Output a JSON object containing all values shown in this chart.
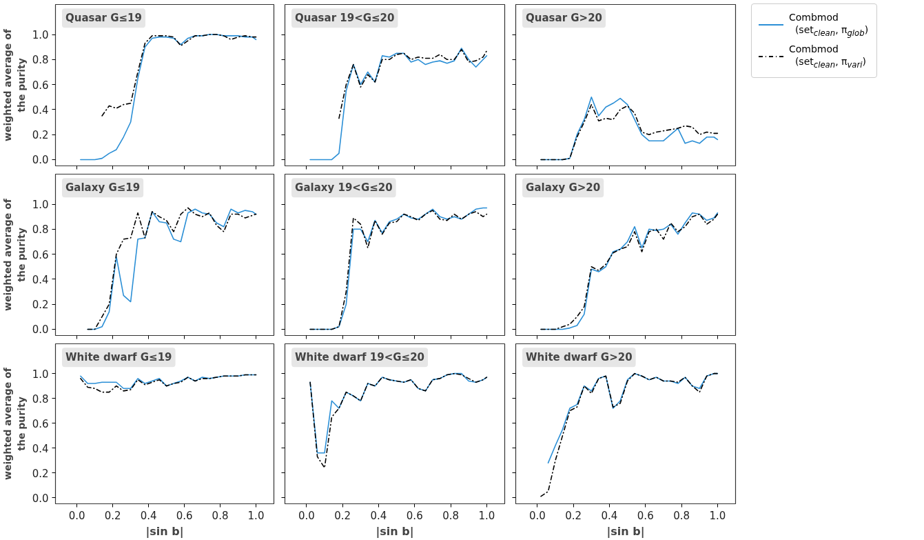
{
  "chart_data": [
    {
      "type": "line",
      "title": "Quasar G≤19",
      "ylabel": "weighted average of\nthe purity",
      "tick_labels": "y",
      "grid": false,
      "legend": "right",
      "xlim": [
        -0.12,
        1.1
      ],
      "ylim": [
        -0.05,
        1.24
      ],
      "xticks": [
        0,
        0.2,
        0.4,
        0.6,
        0.8,
        1
      ],
      "yticks": [
        {
          "value": 0,
          "label": "0.0"
        },
        {
          "value": 0.2,
          "label": "0.2"
        },
        {
          "value": 0.4,
          "label": "0.4"
        },
        {
          "value": 0.6,
          "label": "0.6"
        },
        {
          "value": 0.8,
          "label": "0.8"
        },
        {
          "value": 1,
          "label": "1.0"
        }
      ],
      "x": [
        0.02,
        0.06,
        0.1,
        0.14,
        0.18,
        0.22,
        0.26,
        0.3,
        0.34,
        0.38,
        0.42,
        0.46,
        0.5,
        0.54,
        0.58,
        0.62,
        0.66,
        0.7,
        0.74,
        0.78,
        0.82,
        0.86,
        0.9,
        0.94,
        0.98,
        1.0
      ],
      "series": [
        {
          "name": "Combmod (set$_{clean}$, π$_{glob}$)",
          "color": "#2b8fd6",
          "line_style": "solid",
          "values": [
            0,
            0,
            0,
            0.01,
            0.05,
            0.08,
            0.18,
            0.3,
            0.65,
            0.9,
            0.97,
            0.98,
            0.98,
            0.97,
            0.92,
            0.97,
            0.99,
            0.99,
            1.0,
            1.0,
            0.99,
            0.99,
            0.99,
            0.98,
            0.98,
            0.96
          ]
        },
        {
          "name": "Combmod (set$_{clean}$, π$_{vari}$)",
          "color": "#000000",
          "line_style": "dashdot",
          "values": [
            null,
            null,
            null,
            0.35,
            0.43,
            0.41,
            0.44,
            0.45,
            0.7,
            0.93,
            0.99,
            0.99,
            0.99,
            0.98,
            0.91,
            0.95,
            0.99,
            0.99,
            1.0,
            1.0,
            0.99,
            0.96,
            0.98,
            0.99,
            0.98,
            0.98
          ]
        }
      ]
    },
    {
      "type": "line",
      "title": "Quasar 19<G≤20",
      "tick_labels": false,
      "grid": false,
      "xlim": [
        -0.12,
        1.1
      ],
      "ylim": [
        -0.05,
        1.24
      ],
      "xticks": [
        0,
        0.2,
        0.4,
        0.6,
        0.8,
        1
      ],
      "yticks": [
        0,
        0.2,
        0.4,
        0.6,
        0.8,
        1
      ],
      "x": [
        0.02,
        0.06,
        0.1,
        0.14,
        0.18,
        0.22,
        0.26,
        0.3,
        0.34,
        0.38,
        0.42,
        0.46,
        0.5,
        0.54,
        0.58,
        0.62,
        0.66,
        0.7,
        0.74,
        0.78,
        0.82,
        0.86,
        0.9,
        0.94,
        0.98,
        1.0
      ],
      "series": [
        {
          "color": "#2b8fd6",
          "line_style": "solid",
          "values": [
            0,
            0,
            0,
            0,
            0.05,
            0.55,
            0.76,
            0.6,
            0.7,
            0.62,
            0.83,
            0.82,
            0.85,
            0.85,
            0.78,
            0.8,
            0.76,
            0.78,
            0.79,
            0.77,
            0.79,
            0.89,
            0.8,
            0.74,
            0.8,
            0.83
          ]
        },
        {
          "color": "#000000",
          "line_style": "dashdot",
          "values": [
            null,
            null,
            null,
            null,
            0.33,
            0.6,
            0.76,
            0.58,
            0.68,
            0.62,
            0.8,
            0.8,
            0.84,
            0.85,
            0.8,
            0.82,
            0.81,
            0.81,
            0.84,
            0.8,
            0.8,
            0.88,
            0.78,
            0.79,
            0.82,
            0.87
          ]
        }
      ]
    },
    {
      "type": "line",
      "title": "Quasar G>20",
      "tick_labels": false,
      "grid": false,
      "xlim": [
        -0.12,
        1.1
      ],
      "ylim": [
        -0.05,
        1.24
      ],
      "xticks": [
        0,
        0.2,
        0.4,
        0.6,
        0.8,
        1
      ],
      "yticks": [
        0,
        0.2,
        0.4,
        0.6,
        0.8,
        1
      ],
      "x": [
        0.02,
        0.06,
        0.1,
        0.14,
        0.18,
        0.22,
        0.26,
        0.3,
        0.34,
        0.38,
        0.42,
        0.46,
        0.5,
        0.54,
        0.58,
        0.62,
        0.66,
        0.7,
        0.74,
        0.78,
        0.82,
        0.86,
        0.9,
        0.94,
        0.98,
        1.0
      ],
      "series": [
        {
          "color": "#2b8fd6",
          "line_style": "solid",
          "values": [
            0,
            0,
            0,
            0,
            0.01,
            0.2,
            0.32,
            0.5,
            0.35,
            0.42,
            0.45,
            0.49,
            0.44,
            0.32,
            0.2,
            0.15,
            0.15,
            0.15,
            0.2,
            0.25,
            0.13,
            0.15,
            0.13,
            0.18,
            0.18,
            0.16
          ]
        },
        {
          "color": "#000000",
          "line_style": "dashdot",
          "values": [
            0,
            0,
            0,
            0,
            0.01,
            0.18,
            0.3,
            0.44,
            0.31,
            0.33,
            0.32,
            0.4,
            0.43,
            0.37,
            0.22,
            0.2,
            0.22,
            0.23,
            0.24,
            0.25,
            0.27,
            0.26,
            0.2,
            0.22,
            0.21,
            0.21
          ]
        }
      ]
    },
    {
      "type": "line",
      "title": "Galaxy G≤19",
      "ylabel": "weighted average of\nthe purity",
      "tick_labels": "y",
      "grid": false,
      "xlim": [
        -0.12,
        1.1
      ],
      "ylim": [
        -0.05,
        1.24
      ],
      "xticks": [
        0,
        0.2,
        0.4,
        0.6,
        0.8,
        1
      ],
      "yticks": [
        {
          "value": 0,
          "label": "0.0"
        },
        {
          "value": 0.2,
          "label": "0.2"
        },
        {
          "value": 0.4,
          "label": "0.4"
        },
        {
          "value": 0.6,
          "label": "0.6"
        },
        {
          "value": 0.8,
          "label": "0.8"
        },
        {
          "value": 1,
          "label": "1.0"
        }
      ],
      "x": [
        0.06,
        0.1,
        0.14,
        0.18,
        0.22,
        0.26,
        0.3,
        0.34,
        0.38,
        0.42,
        0.46,
        0.5,
        0.54,
        0.58,
        0.62,
        0.66,
        0.7,
        0.74,
        0.78,
        0.82,
        0.86,
        0.9,
        0.94,
        0.98,
        1.0
      ],
      "series": [
        {
          "color": "#2b8fd6",
          "line_style": "solid",
          "values": [
            0,
            0,
            0.02,
            0.14,
            0.58,
            0.27,
            0.22,
            0.72,
            0.73,
            0.94,
            0.86,
            0.85,
            0.72,
            0.7,
            0.93,
            0.96,
            0.93,
            0.92,
            0.85,
            0.82,
            0.96,
            0.93,
            0.95,
            0.94,
            0.92
          ]
        },
        {
          "color": "#000000",
          "line_style": "dashdot",
          "values": [
            0,
            0,
            0.1,
            0.2,
            0.6,
            0.72,
            0.73,
            0.93,
            0.73,
            0.94,
            0.9,
            0.87,
            0.78,
            0.92,
            0.97,
            0.92,
            0.9,
            0.93,
            0.83,
            0.78,
            0.92,
            0.92,
            0.89,
            0.91,
            0.92
          ]
        }
      ]
    },
    {
      "type": "line",
      "title": "Galaxy 19<G≤20",
      "tick_labels": false,
      "grid": false,
      "xlim": [
        -0.12,
        1.1
      ],
      "ylim": [
        -0.05,
        1.24
      ],
      "xticks": [
        0,
        0.2,
        0.4,
        0.6,
        0.8,
        1
      ],
      "yticks": [
        0,
        0.2,
        0.4,
        0.6,
        0.8,
        1
      ],
      "x": [
        0.02,
        0.06,
        0.1,
        0.14,
        0.18,
        0.22,
        0.26,
        0.3,
        0.34,
        0.38,
        0.42,
        0.46,
        0.5,
        0.54,
        0.58,
        0.62,
        0.66,
        0.7,
        0.74,
        0.78,
        0.82,
        0.86,
        0.9,
        0.94,
        0.98,
        1.0
      ],
      "series": [
        {
          "color": "#2b8fd6",
          "line_style": "solid",
          "values": [
            0,
            0,
            0,
            0,
            0.02,
            0.2,
            0.8,
            0.8,
            0.7,
            0.87,
            0.77,
            0.86,
            0.88,
            0.92,
            0.89,
            0.88,
            0.92,
            0.96,
            0.9,
            0.88,
            0.9,
            0.88,
            0.92,
            0.96,
            0.97,
            0.97
          ]
        },
        {
          "color": "#000000",
          "line_style": "dashdot",
          "values": [
            0,
            0,
            0,
            0,
            0.02,
            0.3,
            0.89,
            0.84,
            0.65,
            0.87,
            0.76,
            0.85,
            0.86,
            0.92,
            0.9,
            0.87,
            0.92,
            0.95,
            0.88,
            0.87,
            0.92,
            0.88,
            0.92,
            0.94,
            0.9,
            0.92
          ]
        }
      ]
    },
    {
      "type": "line",
      "title": "Galaxy G>20",
      "tick_labels": false,
      "grid": false,
      "xlim": [
        -0.12,
        1.1
      ],
      "ylim": [
        -0.05,
        1.24
      ],
      "xticks": [
        0,
        0.2,
        0.4,
        0.6,
        0.8,
        1
      ],
      "yticks": [
        0,
        0.2,
        0.4,
        0.6,
        0.8,
        1
      ],
      "x": [
        0.02,
        0.06,
        0.1,
        0.14,
        0.18,
        0.22,
        0.26,
        0.3,
        0.34,
        0.38,
        0.42,
        0.46,
        0.5,
        0.54,
        0.58,
        0.62,
        0.66,
        0.7,
        0.74,
        0.78,
        0.82,
        0.86,
        0.9,
        0.94,
        0.98,
        1.0
      ],
      "series": [
        {
          "color": "#2b8fd6",
          "line_style": "solid",
          "values": [
            0,
            0,
            0,
            0,
            0.01,
            0.03,
            0.12,
            0.48,
            0.46,
            0.5,
            0.62,
            0.64,
            0.7,
            0.82,
            0.65,
            0.8,
            0.79,
            0.8,
            0.84,
            0.76,
            0.85,
            0.93,
            0.92,
            0.87,
            0.89,
            0.93
          ]
        },
        {
          "color": "#000000",
          "line_style": "dashdot",
          "values": [
            0,
            0,
            0,
            0.02,
            0.04,
            0.1,
            0.18,
            0.5,
            0.47,
            0.52,
            0.61,
            0.64,
            0.66,
            0.78,
            0.62,
            0.78,
            0.8,
            0.72,
            0.85,
            0.78,
            0.82,
            0.9,
            0.92,
            0.84,
            0.88,
            0.92
          ]
        }
      ]
    },
    {
      "type": "line",
      "title": "White dwarf G≤19",
      "ylabel": "weighted average of\nthe purity",
      "xlabel": "|sin b|",
      "grid": false,
      "xlim": [
        -0.12,
        1.1
      ],
      "ylim": [
        -0.05,
        1.24
      ],
      "xticks": [
        {
          "value": 0,
          "label": "0.0"
        },
        {
          "value": 0.2,
          "label": "0.2"
        },
        {
          "value": 0.4,
          "label": "0.4"
        },
        {
          "value": 0.6,
          "label": "0.6"
        },
        {
          "value": 0.8,
          "label": "0.8"
        },
        {
          "value": 1,
          "label": "1.0"
        }
      ],
      "yticks": [
        {
          "value": 0,
          "label": "0.0"
        },
        {
          "value": 0.2,
          "label": "0.2"
        },
        {
          "value": 0.4,
          "label": "0.4"
        },
        {
          "value": 0.6,
          "label": "0.6"
        },
        {
          "value": 0.8,
          "label": "0.8"
        },
        {
          "value": 1,
          "label": "1.0"
        }
      ],
      "x": [
        0.02,
        0.06,
        0.1,
        0.14,
        0.18,
        0.22,
        0.26,
        0.3,
        0.34,
        0.38,
        0.42,
        0.46,
        0.5,
        0.54,
        0.58,
        0.62,
        0.66,
        0.7,
        0.74,
        0.78,
        0.82,
        0.86,
        0.9,
        0.94,
        0.98,
        1.0
      ],
      "series": [
        {
          "color": "#2b8fd6",
          "line_style": "solid",
          "values": [
            0.98,
            0.92,
            0.92,
            0.93,
            0.93,
            0.93,
            0.88,
            0.88,
            0.96,
            0.92,
            0.94,
            0.96,
            0.9,
            0.92,
            0.94,
            0.97,
            0.94,
            0.97,
            0.96,
            0.97,
            0.98,
            0.98,
            0.98,
            0.99,
            0.99,
            0.99
          ]
        },
        {
          "color": "#000000",
          "line_style": "dashdot",
          "values": [
            0.96,
            0.89,
            0.88,
            0.85,
            0.85,
            0.9,
            0.86,
            0.87,
            0.95,
            0.91,
            0.93,
            0.95,
            0.9,
            0.92,
            0.93,
            0.97,
            0.94,
            0.96,
            0.96,
            0.97,
            0.98,
            0.98,
            0.98,
            0.99,
            0.99,
            0.99
          ]
        }
      ]
    },
    {
      "type": "line",
      "title": "White dwarf 19<G≤20",
      "xlabel": "|sin b|",
      "tick_labels": "x",
      "grid": false,
      "xlim": [
        -0.12,
        1.1
      ],
      "ylim": [
        -0.05,
        1.24
      ],
      "xticks": [
        {
          "value": 0,
          "label": "0.0"
        },
        {
          "value": 0.2,
          "label": "0.2"
        },
        {
          "value": 0.4,
          "label": "0.4"
        },
        {
          "value": 0.6,
          "label": "0.6"
        },
        {
          "value": 0.8,
          "label": "0.8"
        },
        {
          "value": 1,
          "label": "1.0"
        }
      ],
      "yticks": [
        0,
        0.2,
        0.4,
        0.6,
        0.8,
        1
      ],
      "x": [
        0.02,
        0.06,
        0.1,
        0.14,
        0.18,
        0.22,
        0.26,
        0.3,
        0.34,
        0.38,
        0.42,
        0.46,
        0.5,
        0.54,
        0.58,
        0.62,
        0.66,
        0.7,
        0.74,
        0.78,
        0.82,
        0.86,
        0.9,
        0.94,
        0.98,
        1.0
      ],
      "series": [
        {
          "color": "#2b8fd6",
          "line_style": "solid",
          "values": [
            0.93,
            0.36,
            0.36,
            0.78,
            0.72,
            0.85,
            0.82,
            0.78,
            0.92,
            0.9,
            0.97,
            0.95,
            0.94,
            0.93,
            0.95,
            0.88,
            0.86,
            0.95,
            0.96,
            0.99,
            1.0,
            1.0,
            0.94,
            0.93,
            0.95,
            0.97
          ]
        },
        {
          "color": "#000000",
          "line_style": "dashdot",
          "values": [
            0.93,
            0.33,
            0.24,
            0.65,
            0.72,
            0.85,
            0.82,
            0.78,
            0.92,
            0.9,
            0.97,
            0.95,
            0.94,
            0.93,
            0.95,
            0.88,
            0.86,
            0.95,
            0.96,
            0.99,
            1.0,
            0.99,
            0.96,
            0.93,
            0.95,
            0.97
          ]
        }
      ]
    },
    {
      "type": "line",
      "title": "White dwarf G>20",
      "xlabel": "|sin b|",
      "tick_labels": "x",
      "grid": false,
      "xlim": [
        -0.12,
        1.1
      ],
      "ylim": [
        -0.05,
        1.24
      ],
      "xticks": [
        {
          "value": 0,
          "label": "0.0"
        },
        {
          "value": 0.2,
          "label": "0.2"
        },
        {
          "value": 0.4,
          "label": "0.4"
        },
        {
          "value": 0.6,
          "label": "0.6"
        },
        {
          "value": 0.8,
          "label": "0.8"
        },
        {
          "value": 1,
          "label": "1.0"
        }
      ],
      "yticks": [
        0,
        0.2,
        0.4,
        0.6,
        0.8,
        1
      ],
      "x": [
        0.02,
        0.06,
        0.1,
        0.14,
        0.18,
        0.22,
        0.26,
        0.3,
        0.34,
        0.38,
        0.42,
        0.46,
        0.5,
        0.54,
        0.58,
        0.62,
        0.66,
        0.7,
        0.74,
        0.78,
        0.82,
        0.86,
        0.9,
        0.94,
        0.98,
        1.0
      ],
      "series": [
        {
          "color": "#2b8fd6",
          "line_style": "solid",
          "values": [
            null,
            0.28,
            0.42,
            0.55,
            0.72,
            0.75,
            0.9,
            0.86,
            0.96,
            0.98,
            0.72,
            0.78,
            0.95,
            1.0,
            0.98,
            0.95,
            0.97,
            0.94,
            0.94,
            0.92,
            0.97,
            0.9,
            0.88,
            0.98,
            1.0,
            1.0
          ]
        },
        {
          "color": "#000000",
          "line_style": "dashdot",
          "values": [
            0.01,
            0.05,
            0.3,
            0.5,
            0.7,
            0.73,
            0.9,
            0.84,
            0.96,
            0.98,
            0.73,
            0.76,
            0.94,
            1.0,
            0.98,
            0.95,
            0.97,
            0.94,
            0.94,
            0.93,
            0.97,
            0.9,
            0.85,
            0.98,
            1.0,
            1.0
          ]
        }
      ]
    }
  ]
}
